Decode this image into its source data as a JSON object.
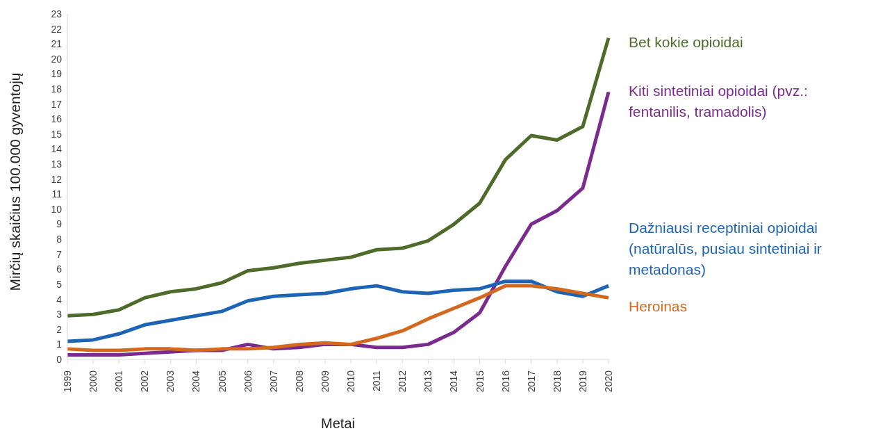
{
  "chart_data": {
    "type": "line",
    "xlabel": "Metai",
    "ylabel": "Mirčių skaičius 100.000 gyventojų",
    "categories": [
      "1999",
      "2000",
      "2001",
      "2002",
      "2003",
      "2004",
      "2005",
      "2006",
      "2007",
      "2008",
      "2009",
      "2010",
      "2011",
      "2012",
      "2013",
      "2014",
      "2015",
      "2016",
      "2017",
      "2018",
      "2019",
      "2020"
    ],
    "ylim": [
      0,
      23
    ],
    "yticks": [
      0,
      1,
      2,
      3,
      4,
      5,
      6,
      7,
      8,
      9,
      10,
      11,
      12,
      13,
      14,
      15,
      16,
      17,
      18,
      19,
      20,
      21,
      22,
      23
    ],
    "grid": false,
    "legend": false,
    "marker": "none",
    "line_style": "solid",
    "series": [
      {
        "name": "Bet kokie opioidai",
        "color": "#4e6b2a",
        "values": [
          2.9,
          3.0,
          3.3,
          4.1,
          4.5,
          4.7,
          5.1,
          5.9,
          6.1,
          6.4,
          6.6,
          6.8,
          7.3,
          7.4,
          7.9,
          9.0,
          10.4,
          13.3,
          14.9,
          14.6,
          15.5,
          21.4
        ]
      },
      {
        "name": "Kiti sintetiniai opioidai (pvz.: fentanilis, tramadolis)",
        "color": "#7b2a8e",
        "values": [
          0.3,
          0.3,
          0.3,
          0.4,
          0.5,
          0.6,
          0.6,
          1.0,
          0.7,
          0.8,
          1.0,
          1.0,
          0.8,
          0.8,
          1.0,
          1.8,
          3.1,
          6.2,
          9.0,
          9.9,
          11.4,
          17.8
        ]
      },
      {
        "name": "Dažniausi receptiniai opioidai (natūralūs, pusiau sintetiniai ir metadonas)",
        "color": "#1e64b4",
        "values": [
          1.2,
          1.3,
          1.7,
          2.3,
          2.6,
          2.9,
          3.2,
          3.9,
          4.2,
          4.3,
          4.4,
          4.7,
          4.9,
          4.5,
          4.4,
          4.6,
          4.7,
          5.2,
          5.2,
          4.5,
          4.2,
          4.9
        ]
      },
      {
        "name": "Heroinas",
        "color": "#d2691e",
        "values": [
          0.7,
          0.6,
          0.6,
          0.7,
          0.7,
          0.6,
          0.7,
          0.7,
          0.8,
          1.0,
          1.1,
          1.0,
          1.4,
          1.9,
          2.7,
          3.4,
          4.1,
          4.9,
          4.9,
          4.7,
          4.4,
          4.1
        ]
      }
    ]
  }
}
